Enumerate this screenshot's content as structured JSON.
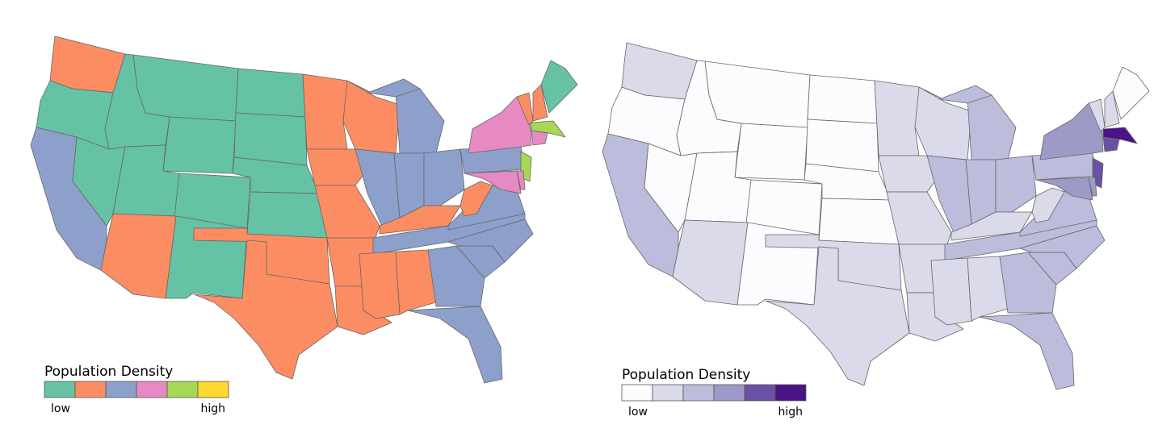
{
  "maps": [
    {
      "legend": {
        "title": "Population Density",
        "low": "low",
        "high": "high",
        "colors": [
          "#66c2a5",
          "#fc8d62",
          "#8da0cb",
          "#e78ac3",
          "#a6d854",
          "#ffd92f"
        ]
      },
      "regions": [
        1,
        0,
        2,
        0,
        0,
        0,
        0,
        0,
        0,
        1,
        0,
        0,
        0,
        0,
        0,
        1,
        1,
        1,
        1,
        1,
        1,
        1,
        1,
        2,
        2,
        2,
        2,
        1,
        2,
        1,
        1,
        2,
        2,
        2,
        2,
        2,
        1,
        2,
        3,
        1,
        1,
        0,
        4,
        3,
        4,
        3,
        3
      ]
    },
    {
      "legend": {
        "title": "Population Density",
        "low": "low",
        "high": "high",
        "colors": [
          "#fcfbfd",
          "#dadaeb",
          "#bcbddc",
          "#9e9ac8",
          "#6a51a3",
          "#4a1486"
        ]
      },
      "regions": [
        1,
        0,
        2,
        0,
        0,
        0,
        0,
        0,
        0,
        1,
        0,
        0,
        0,
        0,
        0,
        1,
        1,
        1,
        1,
        1,
        1,
        1,
        1,
        2,
        2,
        2,
        2,
        1,
        2,
        1,
        1,
        2,
        2,
        2,
        2,
        2,
        1,
        2,
        3,
        1,
        1,
        0,
        5,
        4,
        4,
        3,
        3
      ]
    }
  ]
}
